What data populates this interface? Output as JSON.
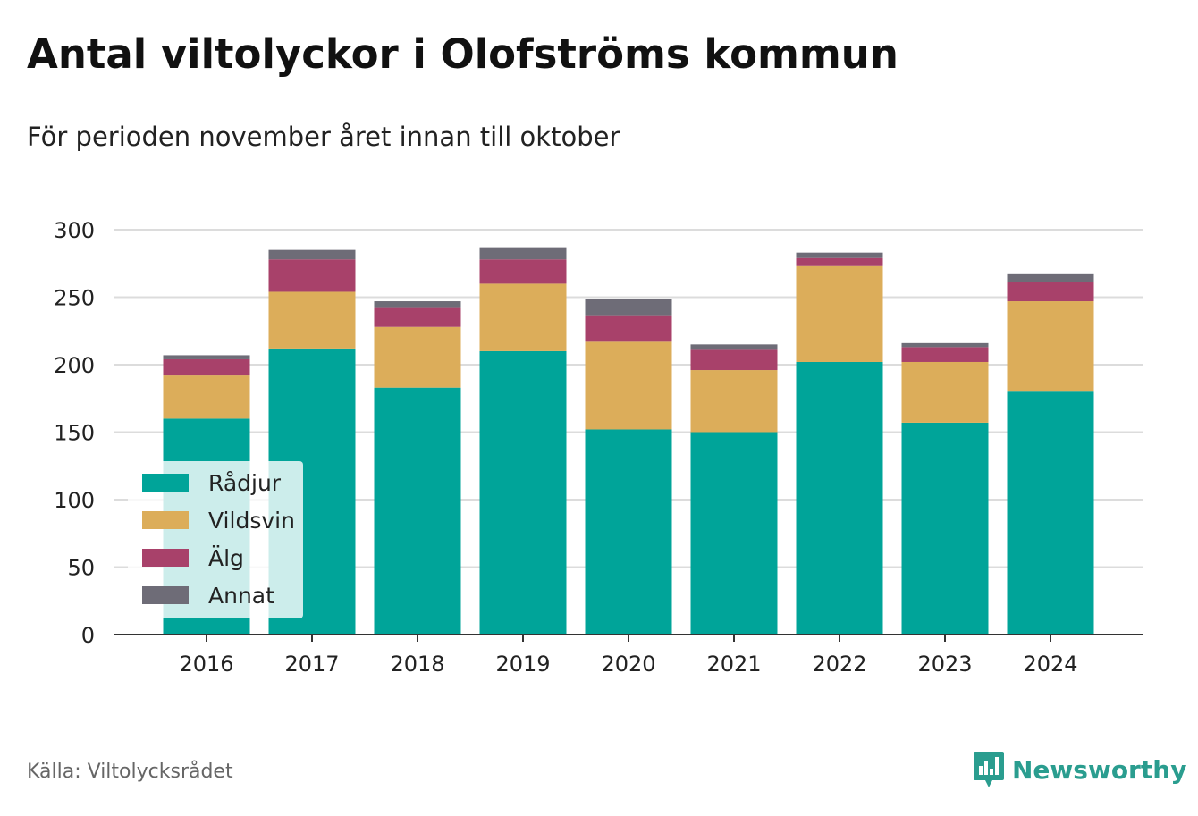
{
  "title": "Antal viltolyckor i Olofströms kommun",
  "subtitle": "För perioden november året innan till oktober",
  "source": "Källa: Viltolycksrådet",
  "brand": {
    "name": "Newsworthy",
    "icon": "bar-chart-speech-bubble-icon"
  },
  "colors": {
    "Rådjur": "#00a499",
    "Vildsvin": "#dcad5a",
    "Älg": "#a8416a",
    "Annat": "#6e6c77"
  },
  "chart_data": {
    "type": "bar",
    "stacked": true,
    "categories": [
      "2016",
      "2017",
      "2018",
      "2019",
      "2020",
      "2021",
      "2022",
      "2023",
      "2024"
    ],
    "series": [
      {
        "name": "Rådjur",
        "values": [
          160,
          212,
          183,
          210,
          152,
          150,
          202,
          157,
          180
        ]
      },
      {
        "name": "Vildsvin",
        "values": [
          32,
          42,
          45,
          50,
          65,
          46,
          71,
          45,
          67
        ]
      },
      {
        "name": "Älg",
        "values": [
          12,
          24,
          14,
          18,
          19,
          15,
          6,
          11,
          14
        ]
      },
      {
        "name": "Annat",
        "values": [
          3,
          7,
          5,
          9,
          13,
          4,
          4,
          3,
          6
        ]
      }
    ],
    "ylim": [
      0,
      300
    ],
    "yticks": [
      0,
      50,
      100,
      150,
      200,
      250,
      300
    ],
    "grid": true,
    "legend": "bottom-left"
  }
}
